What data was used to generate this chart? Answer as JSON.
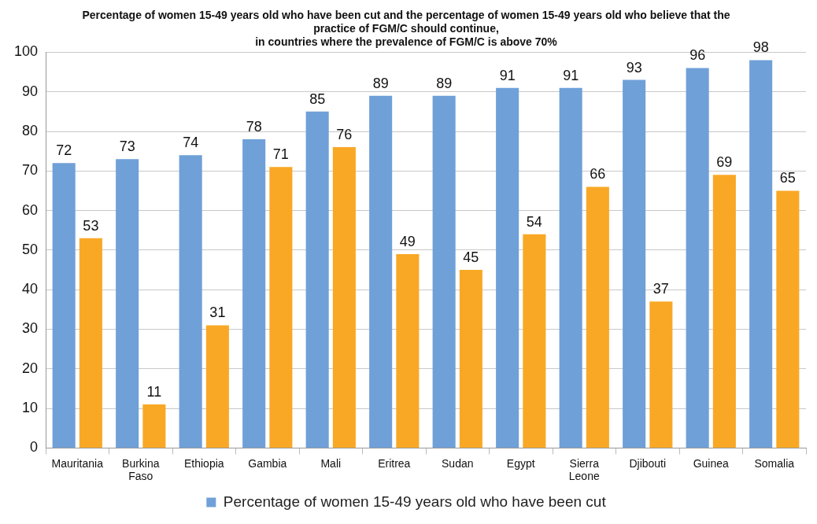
{
  "chart_data": {
    "type": "bar",
    "title": [
      "Percentage of women 15-49 years old who have been cut and the percentage of women 15-49 years old who believe that the",
      "practice of FGM/C should continue,",
      "in countries where the prevalence of FGM/C is above 70%"
    ],
    "categories": [
      "Mauritania",
      "Burkina Faso",
      "Ethiopia",
      "Gambia",
      "Mali",
      "Eritrea",
      "Sudan",
      "Egypt",
      "Sierra Leone",
      "Djibouti",
      "Guinea",
      "Somalia"
    ],
    "series": [
      {
        "name": "Percentage of women 15-49 years old who have been cut",
        "color": "#6fa0d8",
        "values": [
          72,
          73,
          74,
          78,
          85,
          89,
          89,
          91,
          91,
          93,
          96,
          98
        ]
      },
      {
        "color": "#f9a825",
        "values": [
          53,
          11,
          31,
          71,
          76,
          49,
          45,
          54,
          66,
          37,
          69,
          65
        ]
      }
    ],
    "ylim": [
      0,
      100
    ],
    "yticks": [
      0,
      10,
      20,
      30,
      40,
      50,
      60,
      70,
      80,
      90,
      100
    ],
    "grid": "y",
    "legend": "bottom",
    "data_labels": true
  }
}
